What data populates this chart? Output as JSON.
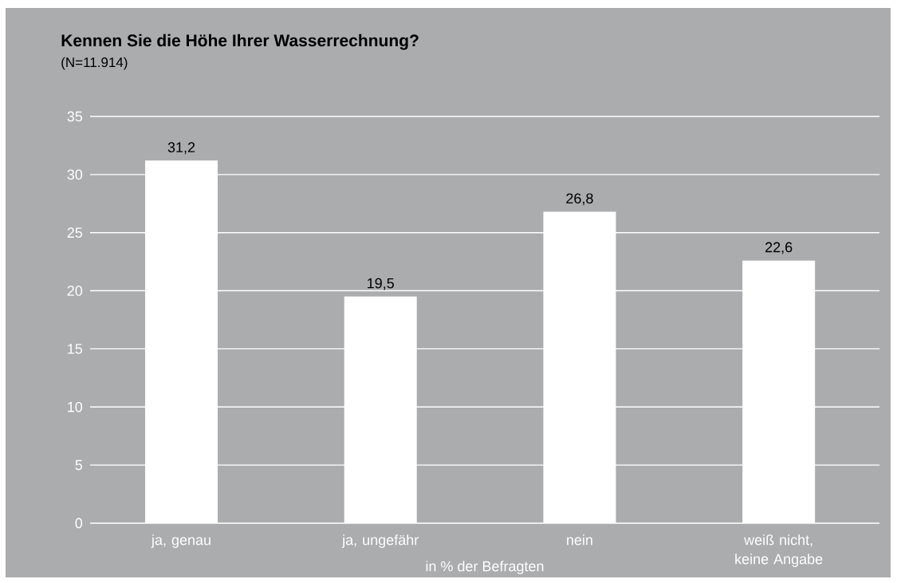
{
  "chart_data": {
    "type": "bar",
    "title": "Kennen Sie die Höhe Ihrer Wasserrechnung?",
    "subtitle": "(N=11.914)",
    "xlabel": "in % der Befragten",
    "categories": [
      "ja, genau",
      "ja, ungefähr",
      "nein",
      "weiß nicht, keine Angabe"
    ],
    "values": [
      31.2,
      19.5,
      26.8,
      22.6
    ],
    "value_labels": [
      "31,2",
      "19,5",
      "26,8",
      "22,6"
    ],
    "color": "#ffffff",
    "ylim": [
      0,
      35
    ],
    "yticks": [
      0,
      5,
      10,
      15,
      20,
      25,
      30,
      35
    ],
    "grid": "y"
  }
}
